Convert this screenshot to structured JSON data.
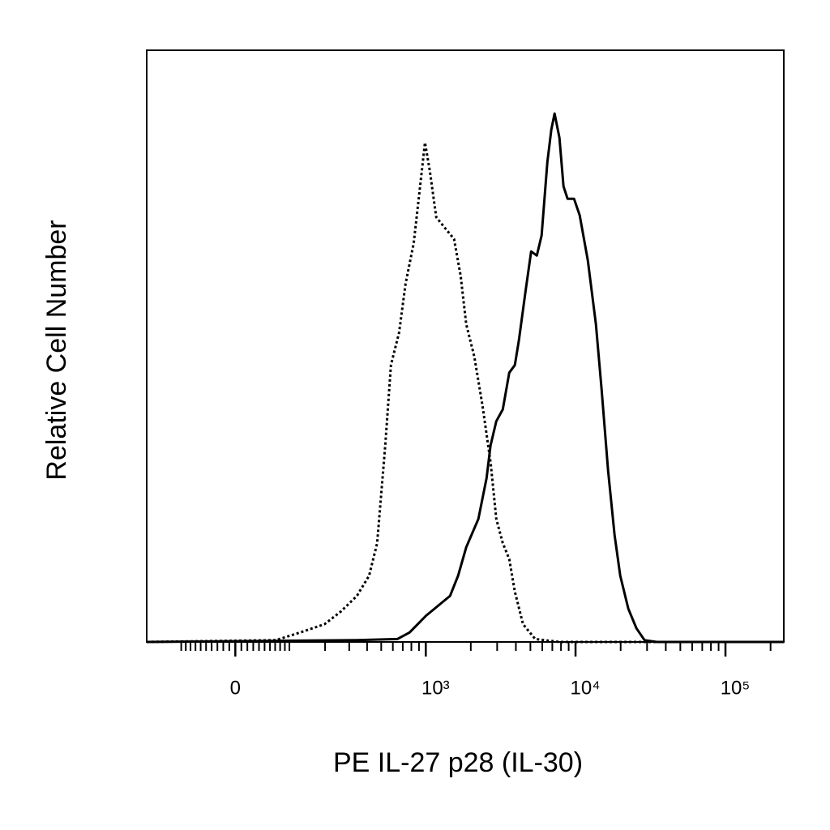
{
  "chart_data": {
    "type": "line",
    "xlabel": "PE IL-27 p28 (IL-30)",
    "ylabel": "Relative Cell Number",
    "xscale": "biexponential",
    "xlim": [
      -196,
      245000
    ],
    "ylim": [
      0,
      100
    ],
    "xticks": [
      0,
      {
        "value": 1000,
        "label": "10³"
      },
      {
        "value": 10000,
        "label": "10⁴"
      },
      {
        "value": 100000,
        "label": "10⁵"
      }
    ],
    "xminorticks": [
      -100,
      -90,
      -80,
      -70,
      -60,
      -50,
      -40,
      -30,
      -20,
      -10,
      10,
      20,
      30,
      40,
      50,
      60,
      70,
      80,
      90,
      100,
      200,
      300,
      400,
      500,
      600,
      700,
      800,
      900,
      2000,
      3000,
      4000,
      5000,
      6000,
      7000,
      8000,
      9000,
      20000,
      30000,
      40000,
      50000,
      60000,
      70000,
      80000,
      90000,
      200000
    ],
    "series": [
      {
        "color": "#000000",
        "style": "dotted",
        "x": [
          -196,
          71,
          126,
          198,
          260,
          340,
          413,
          469,
          533,
          582,
          661,
          731,
          829,
          916,
          987,
          1063,
          1175,
          1332,
          1547,
          1710,
          1865,
          2112,
          2393,
          2711,
          2959,
          3271,
          3615,
          3938,
          4465,
          5380,
          7812,
          245000
        ],
        "values": [
          0,
          0.3,
          1.6,
          3.0,
          5.1,
          7.8,
          11.2,
          16.7,
          33.2,
          46.8,
          52.3,
          60.5,
          67.4,
          77.0,
          84.4,
          79.7,
          71.8,
          70.1,
          68.1,
          61.9,
          53.7,
          48.2,
          40.0,
          30.4,
          20.8,
          16.7,
          14.0,
          8.5,
          3.0,
          0.5,
          0,
          0
        ]
      },
      {
        "color": "#000000",
        "style": "solid",
        "x": [
          -196,
          340,
          643,
          778,
          1000,
          1454,
          1646,
          1865,
          2249,
          2550,
          2711,
          2959,
          3271,
          3615,
          3938,
          4186,
          4638,
          5057,
          5520,
          5940,
          6488,
          6897,
          7252,
          7812,
          8307,
          8845,
          9770,
          10663,
          12073,
          13676,
          14913,
          16484,
          18206,
          19874,
          22510,
          25500,
          28880,
          34820,
          245000
        ],
        "values": [
          0,
          0.3,
          0.5,
          1.6,
          4.4,
          7.8,
          11.2,
          16.0,
          20.8,
          27.7,
          33.2,
          37.3,
          39.3,
          45.5,
          46.8,
          50.9,
          59.2,
          66.0,
          65.3,
          68.7,
          81.1,
          86.6,
          89.3,
          85.2,
          77.0,
          74.9,
          74.9,
          72.1,
          64.5,
          53.7,
          42.7,
          29.0,
          18.1,
          11.2,
          5.6,
          2.3,
          0.3,
          0,
          0
        ]
      }
    ]
  }
}
